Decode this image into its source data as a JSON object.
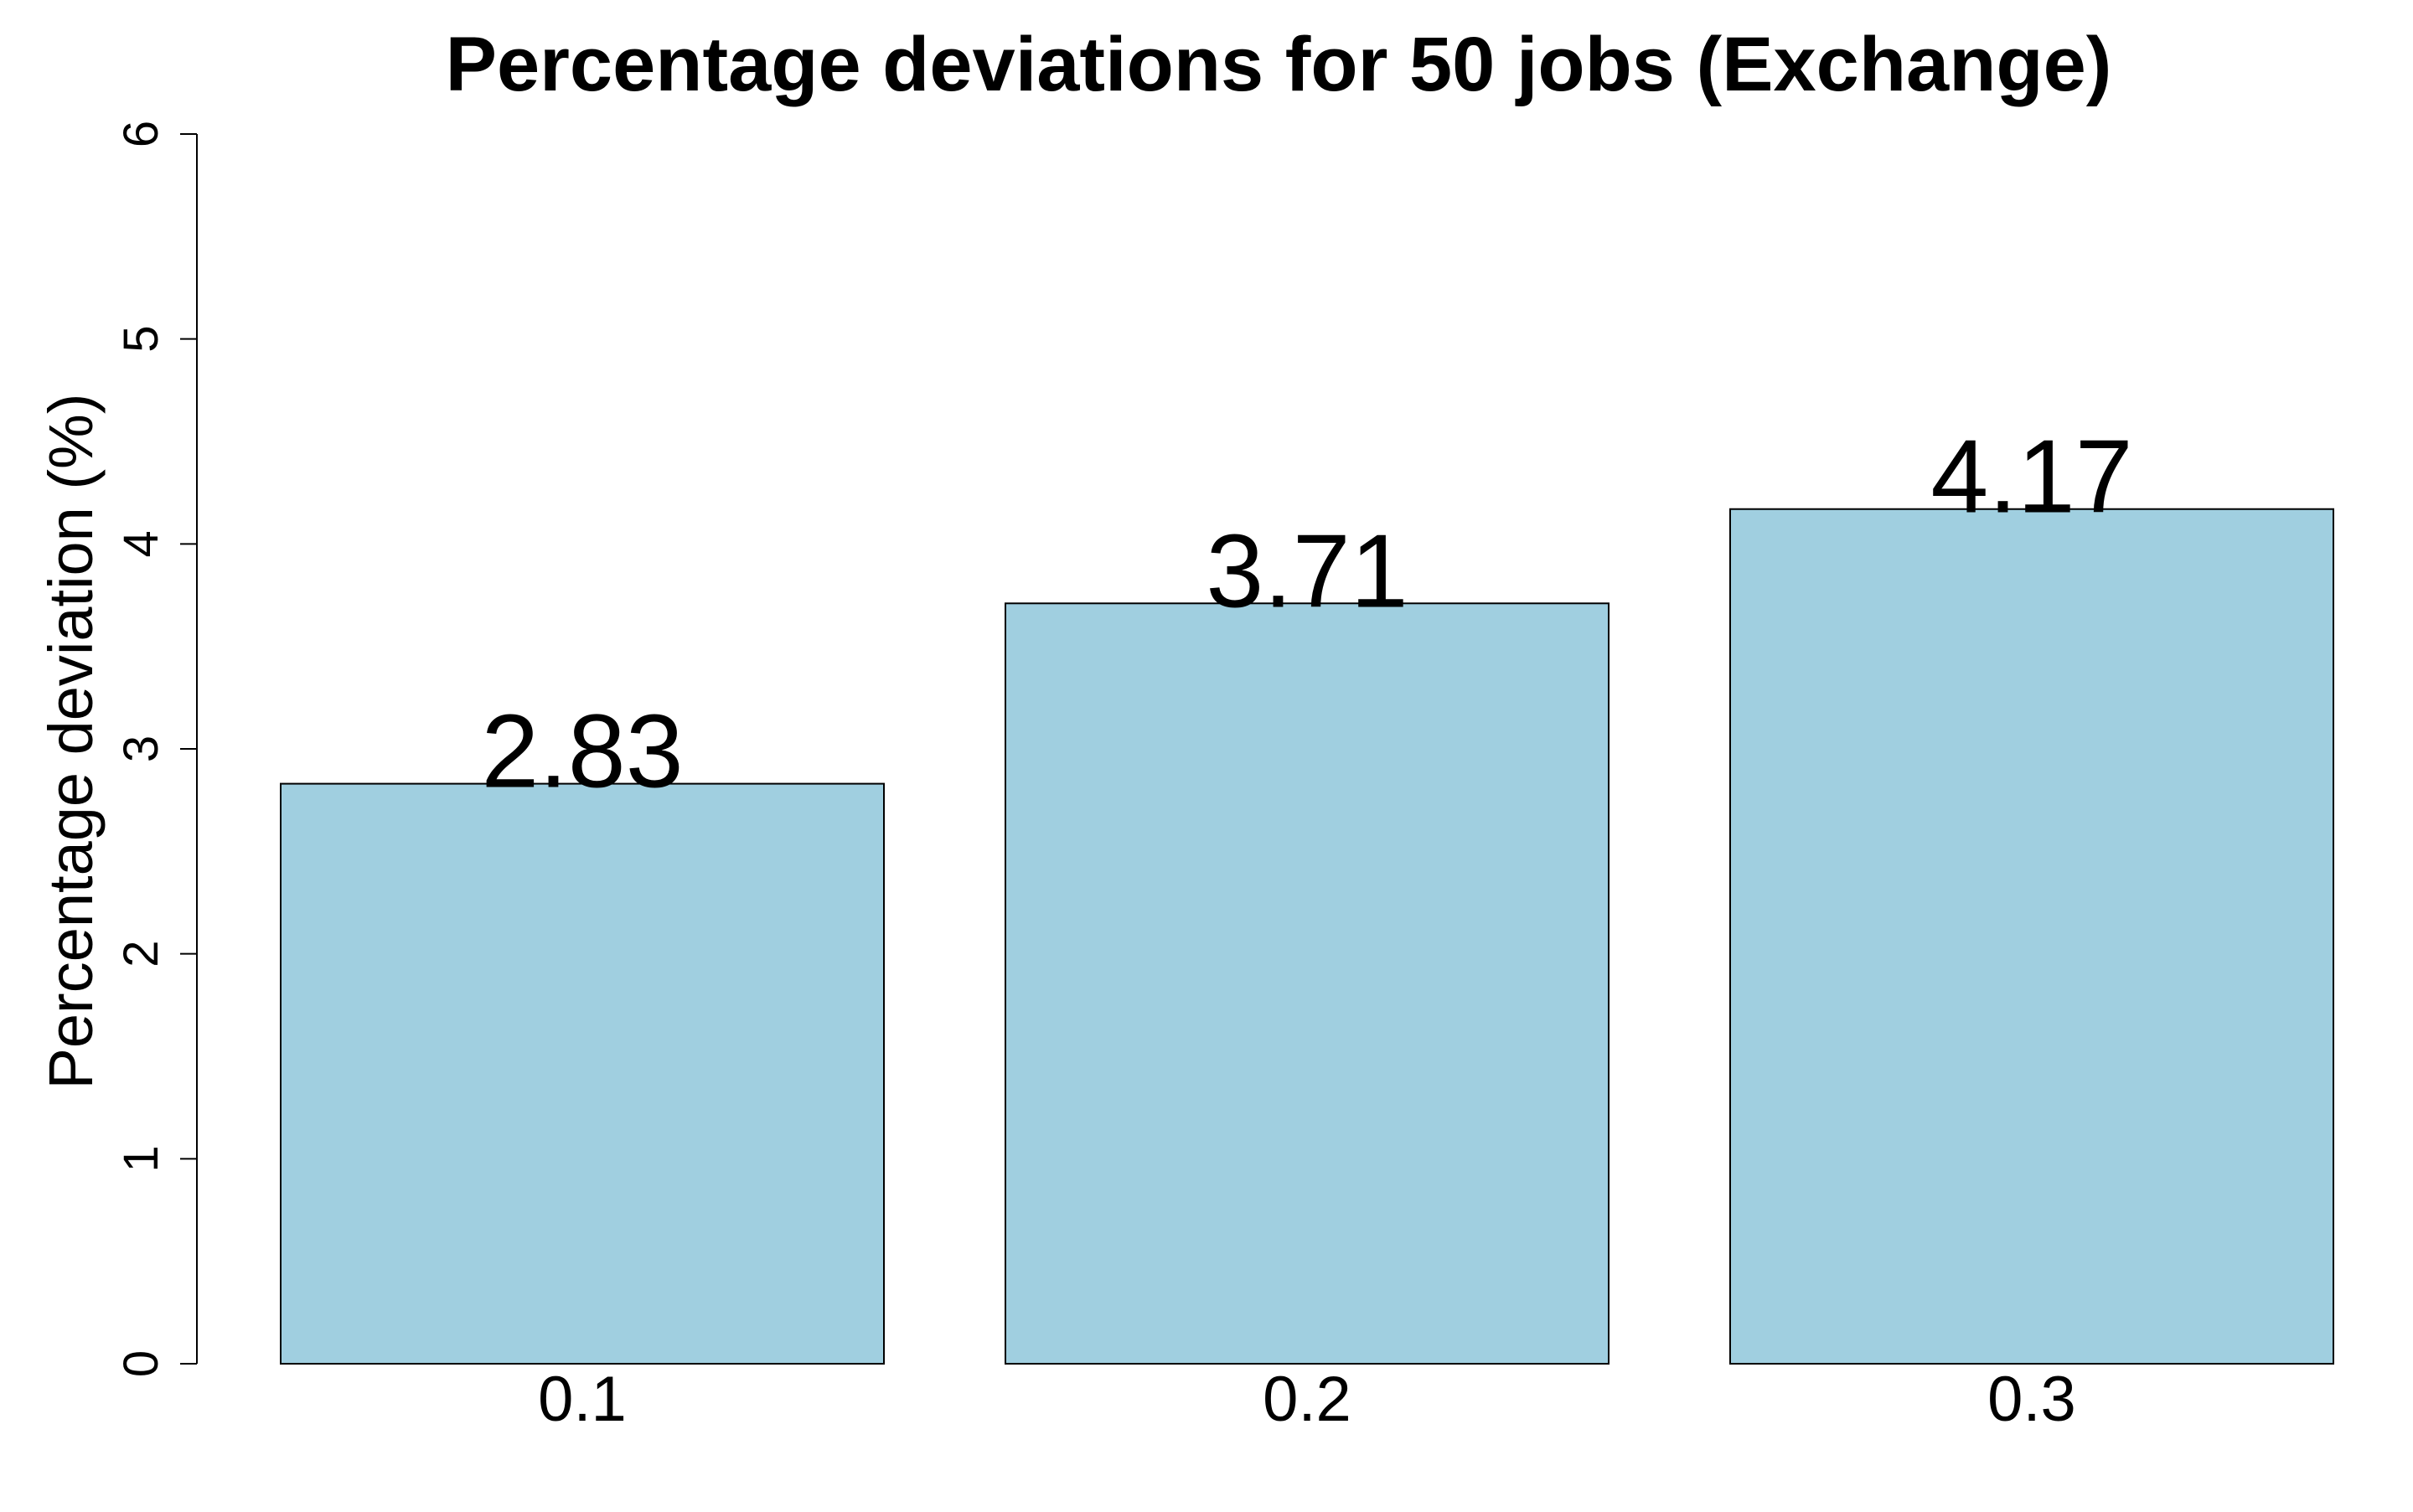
{
  "chart_data": {
    "type": "bar",
    "title": "Percentage deviations for 50 jobs (Exchange)",
    "xlabel": "",
    "ylabel": "Percentage deviation (%)",
    "categories": [
      "0.1",
      "0.2",
      "0.3"
    ],
    "values": [
      2.83,
      3.71,
      4.17
    ],
    "value_labels": [
      "2.83",
      "3.71",
      "4.17"
    ],
    "ylim": [
      0,
      6
    ],
    "yticks": [
      "0",
      "1",
      "2",
      "3",
      "4",
      "5",
      "6"
    ],
    "grid": false,
    "legend": "none",
    "bar_color": "#a0cfe0",
    "bar_border_color": "#000000"
  }
}
